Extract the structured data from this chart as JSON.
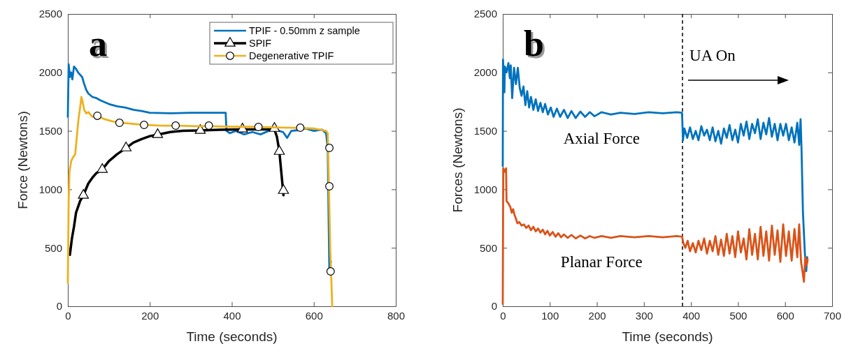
{
  "chart_data": [
    {
      "type": "line",
      "xlabel": "Time (seconds)",
      "ylabel": "Force (Newtons)",
      "xlim": [
        0,
        800
      ],
      "xticks": [
        0,
        200,
        400,
        600,
        800
      ],
      "ylim": [
        0,
        2500
      ],
      "yticks": [
        0,
        500,
        1000,
        1500,
        2000,
        2500
      ],
      "legend": "top right",
      "annotations": [
        "a"
      ],
      "series": [
        {
          "type": "line",
          "name": "TPIF - 0.50mm z sample",
          "color": "#0072bd",
          "x": [
            0,
            2,
            5,
            8,
            11,
            15,
            20,
            25,
            30,
            35,
            40,
            45,
            50,
            60,
            70,
            80,
            100,
            120,
            140,
            160,
            180,
            200,
            250,
            300,
            350,
            385,
            387,
            395,
            410,
            430,
            450,
            470,
            490,
            505,
            515,
            525,
            535,
            545,
            560,
            580,
            600,
            620,
            630,
            634,
            636,
            638,
            640,
            642
          ],
          "values": [
            1620,
            2070,
            1960,
            2000,
            1940,
            2050,
            2030,
            2000,
            1980,
            1960,
            1900,
            1850,
            1820,
            1790,
            1780,
            1760,
            1730,
            1710,
            1700,
            1680,
            1670,
            1655,
            1650,
            1655,
            1655,
            1655,
            1500,
            1480,
            1500,
            1470,
            1490,
            1470,
            1500,
            1510,
            1500,
            1490,
            1440,
            1500,
            1505,
            1520,
            1500,
            1510,
            1480,
            1350,
            800,
            300,
            390,
            380
          ]
        },
        {
          "type": "line",
          "name": "SPIF",
          "color": "#000000",
          "x": [
            5,
            10,
            15,
            20,
            30,
            38,
            50,
            60,
            70,
            84,
            100,
            120,
            142,
            160,
            180,
            200,
            219,
            250,
            280,
            323,
            370,
            426,
            480,
            504,
            510,
            516,
            526
          ],
          "values": [
            440,
            580,
            680,
            800,
            900,
            950,
            1050,
            1100,
            1140,
            1170,
            1240,
            1300,
            1354,
            1400,
            1430,
            1455,
            1468,
            1490,
            1500,
            1504,
            1510,
            1512,
            1512,
            1512,
            1450,
            1324,
            950
          ]
        },
        {
          "type": "scatter",
          "marker": "triangle",
          "color": "#000000",
          "x": [
            38,
            84,
            142,
            219,
            323,
            426,
            504,
            516,
            526
          ],
          "values": [
            949,
            1170,
            1354,
            1468,
            1504,
            1516,
            1521,
            1324,
            990
          ]
        },
        {
          "type": "line",
          "name": "Degenerative TPIF",
          "color": "#edb120",
          "x": [
            0,
            2,
            4,
            8,
            12,
            18,
            22,
            26,
            30,
            33,
            36,
            40,
            45,
            50,
            60,
            70,
            90,
            110,
            130,
            160,
            190,
            230,
            270,
            310,
            350,
            400,
            450,
            500,
            550,
            600,
            630,
            634,
            637,
            640,
            642,
            645
          ],
          "values": [
            200,
            900,
            1150,
            1240,
            1270,
            1300,
            1450,
            1600,
            1700,
            1790,
            1750,
            1680,
            1650,
            1660,
            1620,
            1630,
            1600,
            1580,
            1570,
            1560,
            1550,
            1545,
            1545,
            1540,
            1540,
            1535,
            1535,
            1530,
            1527,
            1520,
            1500,
            1480,
            1000,
            500,
            300,
            0
          ]
        },
        {
          "type": "scatter",
          "marker": "circle",
          "color": "#000000",
          "x": [
            72,
            126,
            186,
            263,
            344,
            465,
            567,
            638,
            638,
            641
          ],
          "values": [
            1629,
            1569,
            1551,
            1545,
            1545,
            1533,
            1527,
            1354,
            1026,
            298
          ]
        }
      ]
    },
    {
      "type": "line",
      "xlabel": "Time (seconds)",
      "ylabel": "Forces (Newtons)",
      "xlim": [
        0,
        700
      ],
      "xticks": [
        0,
        100,
        200,
        300,
        400,
        500,
        600,
        700
      ],
      "ylim": [
        0,
        2500
      ],
      "yticks": [
        0,
        500,
        1000,
        1500,
        2000,
        2500
      ],
      "annotations": [
        "b"
      ],
      "ref_lines": [
        {
          "axis": "x",
          "value": 382,
          "label": "UA On",
          "color": "#000000",
          "line_style": "dashed"
        }
      ],
      "series": [
        {
          "type": "line",
          "name": "Axial Force",
          "color": "#0072bd",
          "x": [
            0,
            0.5,
            2,
            3.5,
            4.5,
            8,
            12,
            15,
            17,
            20,
            24,
            28,
            32,
            36,
            40,
            44,
            48,
            52,
            56,
            60,
            65,
            70,
            75,
            80,
            85,
            90,
            96,
            102,
            108,
            115,
            122,
            130,
            138,
            146,
            155,
            165,
            175,
            185,
            195,
            210,
            230,
            250,
            280,
            310,
            340,
            370,
            381,
            383,
            386,
            392,
            398,
            404,
            410,
            416,
            422,
            428,
            434,
            440,
            446,
            452,
            458,
            464,
            470,
            476,
            482,
            488,
            494,
            500,
            506,
            512,
            518,
            524,
            530,
            536,
            542,
            548,
            554,
            560,
            566,
            572,
            578,
            584,
            590,
            596,
            602,
            608,
            614,
            620,
            626,
            630,
            633,
            635,
            638,
            640,
            642,
            645,
            647
          ],
          "values": [
            1200,
            2110,
            2000,
            1830,
            2050,
            2000,
            2080,
            1950,
            2060,
            1780,
            2040,
            1900,
            2040,
            1870,
            1800,
            1880,
            1720,
            1840,
            1700,
            1790,
            1680,
            1770,
            1670,
            1740,
            1660,
            1730,
            1640,
            1700,
            1620,
            1690,
            1620,
            1680,
            1610,
            1670,
            1610,
            1665,
            1620,
            1660,
            1625,
            1660,
            1640,
            1655,
            1645,
            1660,
            1650,
            1660,
            1655,
            1420,
            1520,
            1440,
            1530,
            1430,
            1500,
            1420,
            1540,
            1460,
            1510,
            1420,
            1530,
            1410,
            1500,
            1390,
            1520,
            1440,
            1550,
            1420,
            1510,
            1400,
            1560,
            1460,
            1580,
            1430,
            1560,
            1480,
            1600,
            1430,
            1570,
            1470,
            1610,
            1450,
            1560,
            1420,
            1560,
            1460,
            1560,
            1420,
            1530,
            1400,
            1570,
            1380,
            1600,
            1340,
            800,
            null,
            460,
            300,
            420
          ]
        },
        {
          "type": "line",
          "name": "Planar Force",
          "color": "#d95319",
          "x": [
            0,
            1,
            4,
            7,
            8,
            12,
            16,
            19,
            22,
            25,
            28,
            31,
            35,
            40,
            45,
            50,
            55,
            60,
            65,
            70,
            75,
            80,
            85,
            90,
            95,
            100,
            106,
            112,
            118,
            124,
            130,
            138,
            146,
            155,
            165,
            175,
            185,
            195,
            210,
            230,
            250,
            280,
            310,
            340,
            370,
            381,
            384,
            388,
            393,
            398,
            404,
            410,
            416,
            422,
            428,
            434,
            440,
            446,
            452,
            458,
            464,
            470,
            476,
            482,
            488,
            494,
            500,
            506,
            512,
            518,
            524,
            530,
            536,
            542,
            548,
            554,
            560,
            566,
            572,
            578,
            584,
            590,
            596,
            602,
            608,
            614,
            620,
            626,
            630,
            634,
            637,
            640,
            643,
            646,
            648
          ],
          "values": [
            20,
            1180,
            1150,
            1180,
            900,
            880,
            850,
            800,
            830,
            780,
            750,
            710,
            720,
            690,
            700,
            670,
            690,
            650,
            680,
            640,
            665,
            630,
            655,
            615,
            645,
            605,
            635,
            595,
            625,
            590,
            615,
            585,
            610,
            580,
            605,
            580,
            600,
            585,
            600,
            585,
            600,
            590,
            600,
            590,
            600,
            595,
            540,
            500,
            560,
            470,
            540,
            460,
            560,
            480,
            580,
            450,
            560,
            470,
            600,
            440,
            570,
            430,
            620,
            450,
            600,
            420,
            640,
            460,
            580,
            400,
            660,
            440,
            620,
            400,
            680,
            430,
            640,
            390,
            690,
            440,
            650,
            380,
            700,
            430,
            640,
            390,
            660,
            420,
            700,
            380,
            300,
            210,
            420,
            350,
            400
          ]
        }
      ]
    }
  ]
}
